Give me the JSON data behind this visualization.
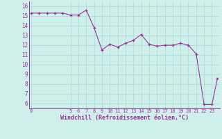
{
  "x": [
    0,
    1,
    2,
    3,
    4,
    5,
    6,
    7,
    8,
    9,
    10,
    11,
    12,
    13,
    14,
    15,
    16,
    17,
    18,
    19,
    20,
    21,
    22,
    23,
    23.7
  ],
  "y": [
    15.3,
    15.3,
    15.3,
    15.3,
    15.3,
    15.1,
    15.1,
    15.6,
    13.8,
    11.5,
    12.1,
    11.8,
    12.2,
    12.5,
    13.1,
    12.1,
    11.9,
    12.0,
    12.0,
    12.2,
    12.0,
    11.1,
    5.9,
    5.9,
    8.6
  ],
  "x_ticks": [
    0,
    5,
    6,
    7,
    8,
    9,
    10,
    11,
    12,
    13,
    14,
    15,
    16,
    17,
    18,
    19,
    20,
    21,
    22,
    23
  ],
  "x_tick_labels": [
    "0",
    "5",
    "6",
    "7",
    "8",
    "9",
    "10",
    "11",
    "12",
    "13",
    "14",
    "15",
    "16",
    "17",
    "18",
    "19",
    "20",
    "21",
    "22",
    "23"
  ],
  "y_ticks": [
    6,
    7,
    8,
    9,
    10,
    11,
    12,
    13,
    14,
    15,
    16
  ],
  "y_tick_labels": [
    "6",
    "7",
    "8",
    "9",
    "10",
    "11",
    "12",
    "13",
    "14",
    "15",
    "16"
  ],
  "xlim": [
    -0.3,
    24.0
  ],
  "ylim": [
    5.5,
    16.5
  ],
  "xlabel": "Windchill (Refroidissement éolien,°C)",
  "line_color": "#993399",
  "marker_color": "#993399",
  "bg_color": "#cff0ea",
  "grid_color": "#aaddd6",
  "xlabel_color": "#993399",
  "tick_color": "#993399"
}
